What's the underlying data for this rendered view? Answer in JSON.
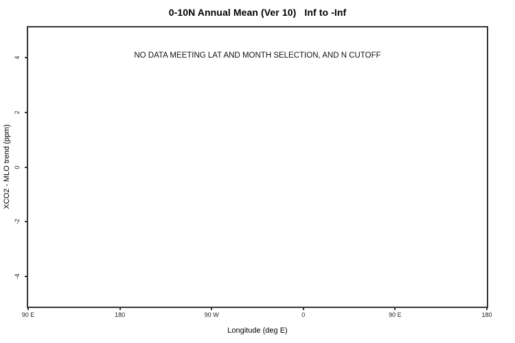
{
  "chart_data": {
    "type": "scatter",
    "title": "0-10N Annual Mean (Ver 10)   Inf to -Inf",
    "annotation": "NO DATA MEETING LAT AND MONTH SELECTION, AND N CUTOFF",
    "xlabel": "Longitude (deg E)",
    "ylabel": "XCO2 - MLO trend (ppm)",
    "series": [],
    "xlim": [
      90,
      540
    ],
    "ylim": [
      -5.1,
      5.1
    ],
    "x_ticks": [
      {
        "value": 90,
        "label": "90 E"
      },
      {
        "value": 180,
        "label": "180"
      },
      {
        "value": 270,
        "label": "90 W"
      },
      {
        "value": 360,
        "label": "0"
      },
      {
        "value": 450,
        "label": "90 E"
      },
      {
        "value": 540,
        "label": "180"
      }
    ],
    "y_ticks": [
      {
        "value": 4,
        "label": "4"
      },
      {
        "value": 2,
        "label": "2"
      },
      {
        "value": 0,
        "label": "0"
      },
      {
        "value": -2,
        "label": "-2"
      },
      {
        "value": -4,
        "label": "-4"
      }
    ],
    "grid": false,
    "legend": null
  },
  "colors": {
    "axis": "#333333",
    "text": "#000000",
    "background": "#ffffff"
  }
}
